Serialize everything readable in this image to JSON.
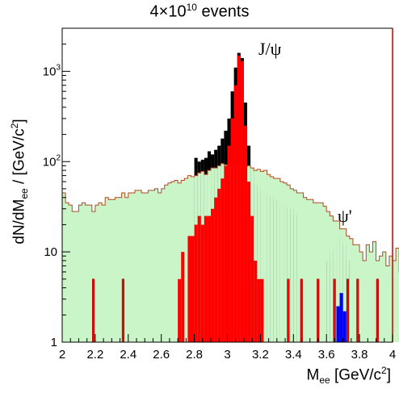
{
  "title_prefix": "4×10",
  "title_exp": "10",
  "title_suffix": " events",
  "ylabel_parts": [
    "dN/dM",
    "ee",
    " / [GeV/c",
    "2",
    "]"
  ],
  "xlabel_parts": [
    "M",
    "ee",
    " [GeV/c",
    "2",
    "]"
  ],
  "annotations": [
    "J/ψ",
    "ψ'"
  ],
  "colors": {
    "background_fill": "#c9f5c9",
    "background_line": "#b04a20",
    "jpsi": "#ff0000",
    "psiprime": "#0000ff",
    "total": "#000000",
    "frame": "#000000",
    "right_edge": "#cc0000"
  },
  "chart_data": {
    "type": "bar",
    "title": "4×10^10 events",
    "xlabel": "M_ee [GeV/c^2]",
    "ylabel": "dN/dM_ee / [GeV/c^2]",
    "xlim": [
      2,
      4
    ],
    "ylim": [
      1,
      3000
    ],
    "yscale": "log",
    "x_ticks": [
      "2",
      "2.2",
      "2.4",
      "2.6",
      "2.8",
      "3",
      "3.2",
      "3.4",
      "3.6",
      "3.8",
      "4"
    ],
    "y_ticks": [
      "1",
      "10",
      "10^2",
      "10^3"
    ],
    "bin_width": 0.02,
    "bin_start": 2.0,
    "series": [
      {
        "name": "background",
        "style": "filled-step",
        "values": [
          45,
          35,
          33,
          28,
          28,
          33,
          35,
          33,
          33,
          28,
          33,
          35,
          33,
          40,
          38,
          38,
          40,
          40,
          45,
          40,
          45,
          45,
          48,
          48,
          45,
          45,
          48,
          48,
          50,
          45,
          50,
          55,
          58,
          60,
          62,
          58,
          62,
          65,
          70,
          68,
          70,
          75,
          78,
          72,
          80,
          85,
          85,
          90,
          95,
          92,
          90,
          95,
          100,
          95,
          92,
          88,
          90,
          85,
          80,
          82,
          78,
          80,
          72,
          68,
          65,
          65,
          60,
          58,
          55,
          50,
          48,
          45,
          45,
          40,
          38,
          38,
          35,
          35,
          35,
          32,
          28,
          25,
          22,
          22,
          18,
          18,
          15,
          14,
          12,
          12,
          10,
          8,
          12,
          10,
          13,
          8,
          9,
          10,
          7,
          9,
          8,
          11,
          6,
          8,
          9,
          6,
          8,
          7,
          4,
          4
        ]
      },
      {
        "name": "J/ψ",
        "style": "filled-bars",
        "values": [
          0,
          0,
          0,
          0,
          0,
          0,
          0,
          0,
          0,
          5,
          0,
          0,
          0,
          0,
          0,
          0,
          0,
          0,
          5,
          0,
          0,
          0,
          0,
          0,
          0,
          0,
          0,
          0,
          0,
          0,
          0,
          0,
          0,
          0,
          0,
          0,
          0,
          0,
          0,
          0,
          0,
          0,
          0,
          0,
          0,
          0,
          0,
          0,
          0,
          0,
          0,
          5,
          0,
          5,
          0,
          0,
          0,
          0,
          0,
          0,
          0,
          0,
          0,
          0,
          0,
          0,
          0,
          0,
          5,
          0,
          0,
          0,
          5,
          0,
          0,
          0,
          0,
          5,
          0,
          0,
          0,
          0,
          5,
          0,
          0,
          0,
          5,
          0,
          0,
          5,
          0,
          0,
          0,
          0,
          0,
          5,
          0,
          0,
          0,
          0,
          0,
          0,
          0,
          0,
          0,
          0,
          0,
          0,
          0,
          0
        ]
      },
      {
        "name": "total",
        "style": "step",
        "values": [
          45,
          35,
          33,
          28,
          28,
          33,
          35,
          33,
          33,
          28,
          33,
          35,
          33,
          40,
          38,
          38,
          40,
          40,
          45,
          40,
          45,
          45,
          48,
          48,
          45,
          45,
          48,
          48,
          50,
          45,
          50,
          55,
          58,
          60,
          62,
          58,
          62,
          65,
          70,
          68,
          70,
          75,
          78,
          72,
          80,
          85,
          85,
          90,
          95,
          92,
          90,
          95,
          100,
          95,
          92,
          88,
          90,
          85,
          80,
          82,
          78,
          80,
          72,
          68,
          65,
          65,
          60,
          58,
          55,
          50,
          48,
          45,
          45,
          40,
          38,
          38,
          35,
          35,
          35,
          32,
          28,
          25,
          22,
          22,
          18,
          18,
          15,
          14,
          12,
          12,
          10,
          8,
          12,
          10,
          13,
          8,
          9,
          10,
          7,
          9,
          8,
          11,
          6,
          8,
          9,
          6,
          8,
          7,
          4,
          4
        ]
      }
    ],
    "jpsi_peak": {
      "x": [
        2.7,
        2.72,
        2.74,
        2.76,
        2.78,
        2.8,
        2.82,
        2.84,
        2.86,
        2.88,
        2.9,
        2.92,
        2.94,
        2.96,
        2.98,
        3.0,
        3.02,
        3.04,
        3.06,
        3.08,
        3.1,
        3.12,
        3.14,
        3.16,
        3.18,
        3.2
      ],
      "values": [
        5,
        10,
        0,
        15,
        15,
        20,
        25,
        20,
        25,
        25,
        30,
        40,
        50,
        65,
        90,
        150,
        300,
        700,
        1500,
        1300,
        250,
        60,
        25,
        8,
        5,
        5
      ]
    },
    "psiprime_peak": {
      "x": [
        3.66,
        3.68,
        3.7
      ],
      "values": [
        2.5,
        3.5,
        2.2
      ]
    },
    "total_extra": {
      "x": [
        2.8,
        2.82,
        2.84,
        2.86,
        2.88,
        2.9,
        2.92,
        2.94,
        2.96,
        2.98,
        3.0,
        3.02,
        3.04,
        3.06,
        3.08,
        3.1,
        3.12,
        3.14,
        3.16,
        3.18,
        3.2,
        3.22,
        3.24,
        3.26,
        3.28,
        3.3,
        3.32,
        3.34,
        3.36,
        3.38,
        3.4,
        3.6,
        3.62,
        3.64,
        3.66,
        3.68,
        3.7,
        3.72
      ],
      "values": [
        110,
        100,
        105,
        110,
        130,
        120,
        135,
        150,
        180,
        220,
        300,
        600,
        1100,
        1600,
        1400,
        450,
        150,
        80,
        55,
        48,
        50,
        45,
        42,
        40,
        38,
        36,
        34,
        32,
        30,
        30,
        26,
        8,
        10,
        12,
        13,
        15,
        12,
        8
      ]
    }
  }
}
